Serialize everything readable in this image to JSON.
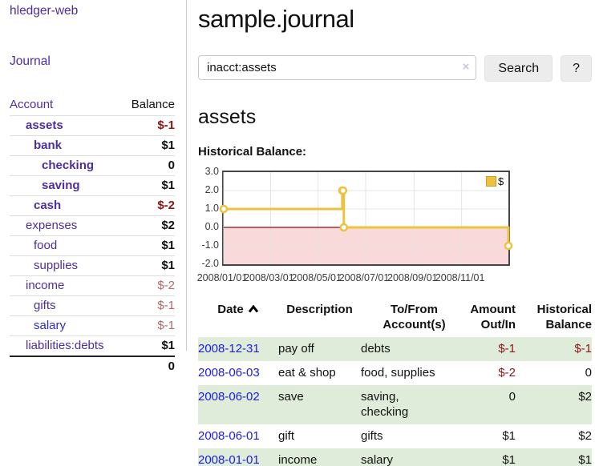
{
  "app": {
    "title": "hledger-web"
  },
  "colors": {
    "accent_purple": "#4d2da0",
    "link_blue": "#1b1be0",
    "negative_strong": "#8b1414",
    "negative_soft": "#b26868",
    "stripe_green": "#dfecd9",
    "chart_line_gold": "#edc240",
    "chart_negative_fill": "#f9d9d9",
    "chart_zero_line": "#8c0d0d"
  },
  "sidebar": {
    "journal_label": "Journal",
    "accounts_table": {
      "headers": {
        "account": "Account",
        "balance": "Balance"
      },
      "rows": [
        {
          "name": "assets",
          "level": 1,
          "bold": true,
          "balance": "$-1",
          "balance_color": "#8b1414",
          "balance_bold": true
        },
        {
          "name": "bank",
          "level": 2,
          "bold": true,
          "balance": "$1",
          "balance_color": "#111111",
          "balance_bold": true
        },
        {
          "name": "checking",
          "level": 3,
          "bold": true,
          "balance": "0",
          "balance_color": "#111111",
          "balance_bold": true
        },
        {
          "name": "saving",
          "level": 3,
          "bold": true,
          "balance": "$1",
          "balance_color": "#111111",
          "balance_bold": true
        },
        {
          "name": "cash",
          "level": 2,
          "bold": true,
          "balance": "$-2",
          "balance_color": "#8b1414",
          "balance_bold": true
        },
        {
          "name": "expenses",
          "level": 1,
          "bold": false,
          "balance": "$2",
          "balance_color": "#111111",
          "balance_bold": true
        },
        {
          "name": "food",
          "level": 2,
          "bold": false,
          "balance": "$1",
          "balance_color": "#111111",
          "balance_bold": true
        },
        {
          "name": "supplies",
          "level": 2,
          "bold": false,
          "balance": "$1",
          "balance_color": "#111111",
          "balance_bold": true
        },
        {
          "name": "income",
          "level": 1,
          "bold": false,
          "balance": "$-2",
          "balance_color": "#b26868",
          "balance_bold": false
        },
        {
          "name": "gifts",
          "level": 2,
          "bold": false,
          "balance": "$-1",
          "balance_color": "#b26868",
          "balance_bold": false
        },
        {
          "name": "salary",
          "level": 2,
          "bold": false,
          "name_color": "#2a2ad6",
          "balance": "$-1",
          "balance_color": "#b26868",
          "balance_bold": false
        },
        {
          "name": "liabilities:debts",
          "level": 1,
          "bold": false,
          "balance": "$1",
          "balance_color": "#111111",
          "balance_bold": true
        }
      ],
      "total": "0"
    }
  },
  "main": {
    "title": "sample.journal",
    "search": {
      "query": "inacct:assets",
      "clear_icon": "×",
      "search_label": "Search",
      "help_label": "?"
    },
    "account_heading": "assets"
  },
  "chart_data": {
    "type": "line",
    "title": "Historical Balance:",
    "steps": true,
    "legend": [
      {
        "label": "$",
        "color": "#edc240"
      }
    ],
    "legend_position": "top-right",
    "ylim": [
      -2,
      3
    ],
    "xlim_days": [
      0,
      365
    ],
    "grid": true,
    "y_ticks": [
      {
        "label": "3.0",
        "value": 3
      },
      {
        "label": "2.0",
        "value": 2
      },
      {
        "label": "1.0",
        "value": 1
      },
      {
        "label": "0.0",
        "value": 0
      },
      {
        "label": "-1.0",
        "value": -1
      },
      {
        "label": "-2.0",
        "value": -2
      }
    ],
    "x_ticks": [
      {
        "label": "2008/01/01",
        "day": 0
      },
      {
        "label": "2008/03/01",
        "day": 60
      },
      {
        "label": "2008/05/01",
        "day": 121
      },
      {
        "label": "2008/07/01",
        "day": 182
      },
      {
        "label": "2008/09/01",
        "day": 244
      },
      {
        "label": "2008/11/01",
        "day": 305
      }
    ],
    "series": [
      {
        "name": "$",
        "color": "#edc240",
        "points": [
          {
            "date": "2008-01-01",
            "day": 0,
            "value": 1
          },
          {
            "date": "2008-06-01",
            "day": 152,
            "value": 2
          },
          {
            "date": "2008-06-02",
            "day": 153,
            "value": 2
          },
          {
            "date": "2008-06-03",
            "day": 154,
            "value": 0
          },
          {
            "date": "2008-12-31",
            "day": 365,
            "value": -1
          }
        ]
      }
    ],
    "negative_region": {
      "from": 0,
      "to": -2,
      "fill": "#f9d9d9",
      "zero_line_color": "#8c0d0d"
    }
  },
  "register": {
    "headers": [
      {
        "label": "Date",
        "align": "left",
        "sorted_asc": true
      },
      {
        "label": "Description",
        "align": "left"
      },
      {
        "label": "To/From\nAccount(s)",
        "align": "left"
      },
      {
        "label": "Amount\nOut/In",
        "align": "right"
      },
      {
        "label": "Historical\nBalance",
        "align": "right"
      }
    ],
    "rows": [
      {
        "date": "2008-12-31",
        "description": "pay off",
        "accounts": "debts",
        "amount": "$-1",
        "balance": "$-1"
      },
      {
        "date": "2008-06-03",
        "description": "eat & shop",
        "accounts": "food, supplies",
        "amount": "$-2",
        "balance": "0"
      },
      {
        "date": "2008-06-02",
        "description": "save",
        "accounts": "saving, checking",
        "amount": "0",
        "balance": "$2"
      },
      {
        "date": "2008-06-01",
        "description": "gift",
        "accounts": "gifts",
        "amount": "$1",
        "balance": "$2"
      },
      {
        "date": "2008-01-01",
        "description": "income",
        "accounts": "salary",
        "amount": "$1",
        "balance": "$1"
      }
    ]
  }
}
